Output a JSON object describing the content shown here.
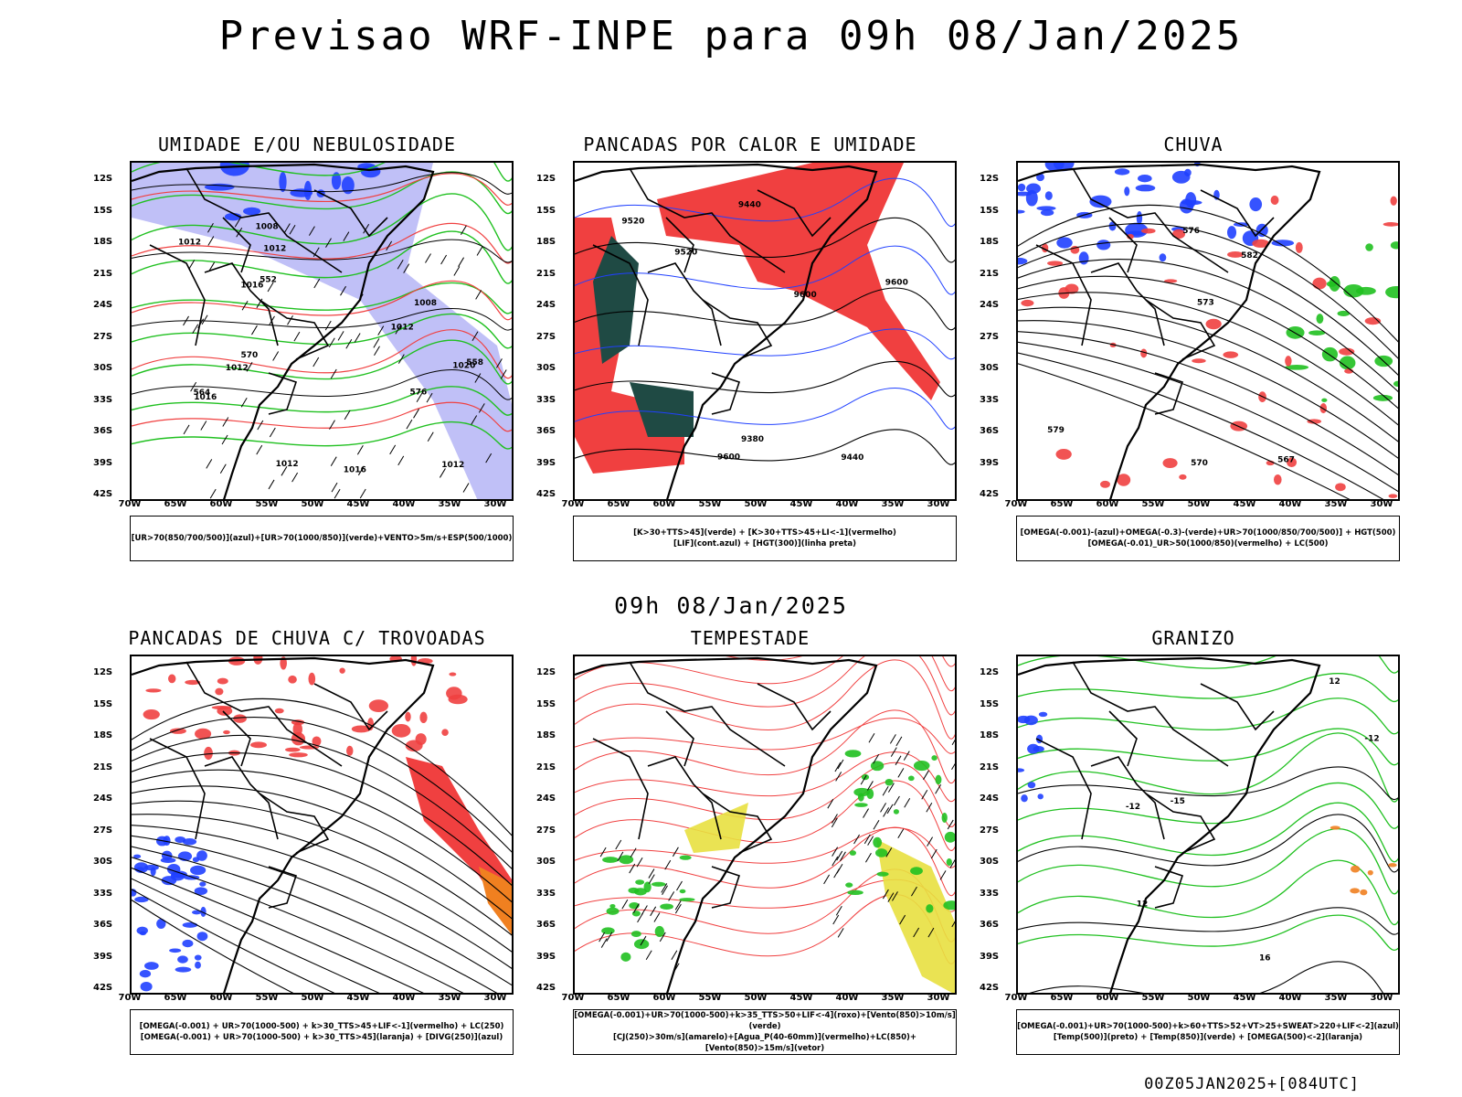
{
  "page": {
    "title": "Previsao WRF-INPE  para 09h 08/Jan/2025",
    "mid_date": "09h 08/Jan/2025",
    "footer": "00Z05JAN2025+[084UTC]"
  },
  "axes": {
    "lat_labels": [
      "12S",
      "15S",
      "18S",
      "21S",
      "24S",
      "27S",
      "30S",
      "33S",
      "36S",
      "39S",
      "42S"
    ],
    "lon_labels": [
      "70W",
      "65W",
      "60W",
      "55W",
      "50W",
      "45W",
      "40W",
      "35W",
      "30W"
    ]
  },
  "panels": [
    {
      "id": "umidade",
      "title": "UMIDADE E/OU NEBULOSIDADE",
      "legend_lines": [
        "[UR>70(850/700/500)](azul)+[UR>70(1000/850)](verde)+VENTO>5m/s+ESP(500/1000)"
      ],
      "contour_labels": [
        "1012",
        "1012",
        "1012",
        "1012",
        "1012",
        "1008",
        "1012",
        "1016",
        "1016",
        "1016",
        "1008",
        "1020",
        "576",
        "570",
        "564",
        "558",
        "552"
      ]
    },
    {
      "id": "pancadas-calor",
      "title": "PANCADAS POR CALOR E UMIDADE",
      "legend_lines": [
        "[K>30+TTS>45](verde) + [K>30+TTS>45+LI<-1](vermelho)",
        "[LIF](cont.azul) + [HGT(300)](linha preta)"
      ],
      "contour_labels": [
        "9600",
        "9520",
        "9600",
        "9440",
        "9380",
        "9440",
        "9600",
        "9520"
      ]
    },
    {
      "id": "chuva",
      "title": "CHUVA",
      "legend_lines": [
        "[OMEGA(-0.001)-(azul)+OMEGA(-0.3)-(verde)+UR>70(1000/850/700/500)] + HGT(500)",
        "[OMEGA(-0.01)_UR>50(1000/850)(vermelho) + LC(500)"
      ],
      "contour_labels": [
        "582",
        "576",
        "573",
        "570",
        "567",
        "579"
      ]
    },
    {
      "id": "trovoadas",
      "title": "PANCADAS DE CHUVA C/ TROVOADAS",
      "legend_lines": [
        "[OMEGA(-0.001) + UR>70(1000-500) + k>30_TTS>45+LIF<-1](vermelho) + LC(250)",
        "[OMEGA(-0.001) + UR>70(1000-500) + k>30_TTS>45](laranja) + [DIVG(250)](azul)"
      ],
      "contour_labels": []
    },
    {
      "id": "tempestade",
      "title": "TEMPESTADE",
      "legend_lines": [
        "[OMEGA(-0.001)+UR>70(1000-500)+k>35_TTS>50+LIF<-4](roxo)+[Vento(850)>10m/s](verde)",
        "[CJ(250)>30m/s](amarelo)+[Agua_P(40-60mm)](vermelho)+LC(850)+[Vento(850)>15m/s](vetor)"
      ],
      "contour_labels": []
    },
    {
      "id": "granizo",
      "title": "GRANIZO",
      "legend_lines": [
        "[OMEGA(-0.001)+UR>70(1000-500)+k>60+TTS>52+VT>25+SWEAT>220+LIF<-2](azul)",
        "[Temp(500)](preto) + [Temp(850)](verde) + [OMEGA(500)<-2](laranja)"
      ],
      "contour_labels": [
        "-12",
        "-15",
        "12",
        "-12",
        "16",
        "12"
      ]
    }
  ],
  "colors": {
    "blue_fill": "#8c8cf0",
    "blue": "#2040ff",
    "green": "#20c020",
    "red": "#f04040",
    "dark_teal": "#1f4a44",
    "yellow": "#e8e040",
    "orange": "#f08020"
  }
}
